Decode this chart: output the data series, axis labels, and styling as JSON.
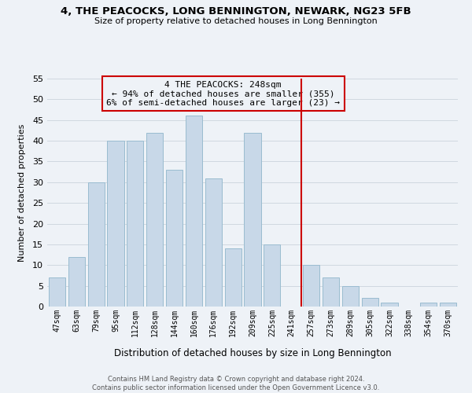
{
  "title": "4, THE PEACOCKS, LONG BENNINGTON, NEWARK, NG23 5FB",
  "subtitle": "Size of property relative to detached houses in Long Bennington",
  "xlabel": "Distribution of detached houses by size in Long Bennington",
  "ylabel": "Number of detached properties",
  "footnote": "Contains HM Land Registry data © Crown copyright and database right 2024.\nContains public sector information licensed under the Open Government Licence v3.0.",
  "bar_labels": [
    "47sqm",
    "63sqm",
    "79sqm",
    "95sqm",
    "112sqm",
    "128sqm",
    "144sqm",
    "160sqm",
    "176sqm",
    "192sqm",
    "209sqm",
    "225sqm",
    "241sqm",
    "257sqm",
    "273sqm",
    "289sqm",
    "305sqm",
    "322sqm",
    "338sqm",
    "354sqm",
    "370sqm"
  ],
  "bar_values": [
    7,
    12,
    30,
    40,
    40,
    42,
    33,
    46,
    31,
    14,
    42,
    15,
    0,
    10,
    7,
    5,
    2,
    1,
    0,
    1,
    1
  ],
  "bar_color": "#c8d8e8",
  "bar_edge_color": "#9abcd0",
  "grid_color": "#d0d8e0",
  "vline_color": "#cc0000",
  "annotation_text": "4 THE PEACOCKS: 248sqm\n← 94% of detached houses are smaller (355)\n6% of semi-detached houses are larger (23) →",
  "annotation_box_color": "#cc0000",
  "ylim": [
    0,
    55
  ],
  "yticks": [
    0,
    5,
    10,
    15,
    20,
    25,
    30,
    35,
    40,
    45,
    50,
    55
  ],
  "bg_color": "#eef2f7",
  "title_fontsize": 9.5,
  "subtitle_fontsize": 8,
  "footnote_fontsize": 6
}
